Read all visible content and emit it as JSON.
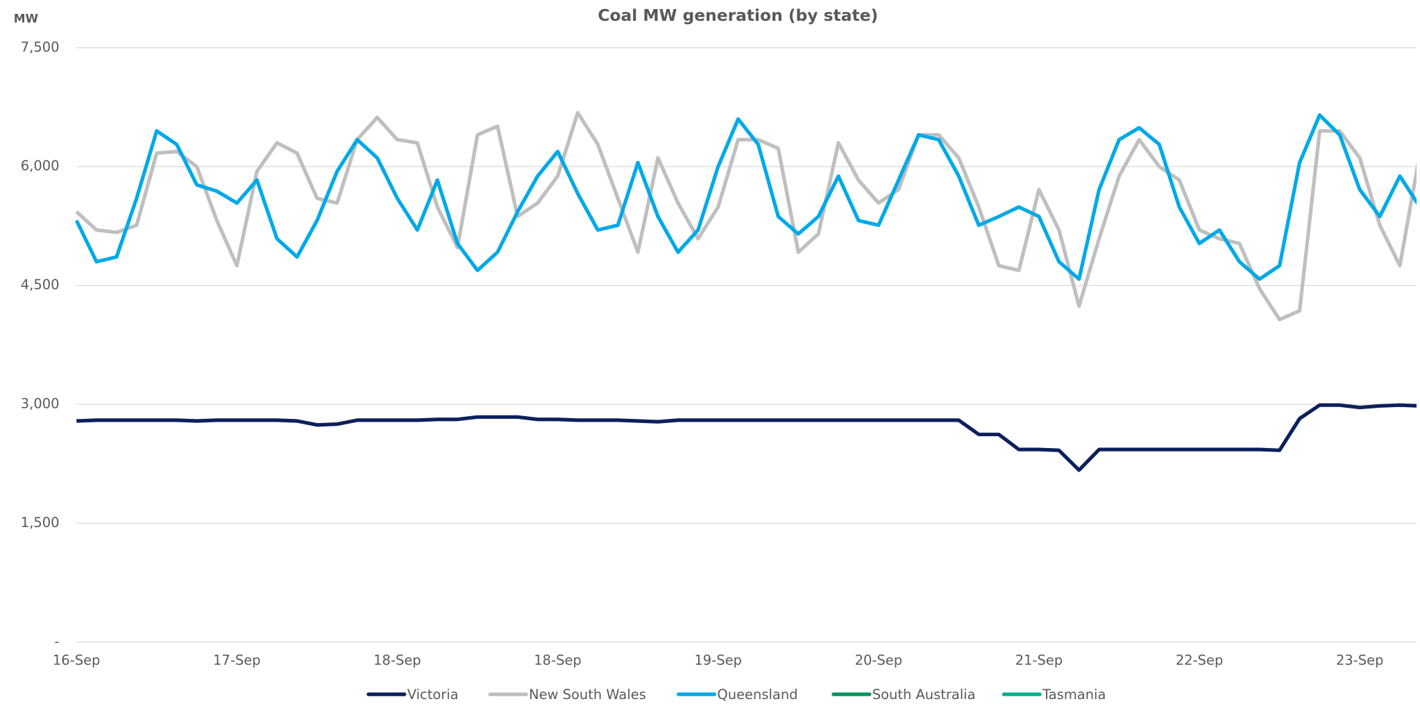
{
  "chart_data": {
    "type": "line",
    "title": "Coal MW generation (by state)",
    "y_label": "MW",
    "categories": [
      "16-Sep",
      null,
      null,
      null,
      null,
      null,
      null,
      null,
      "17-Sep",
      null,
      null,
      null,
      null,
      null,
      null,
      null,
      "18-Sep",
      null,
      null,
      null,
      null,
      null,
      null,
      null,
      "18-Sep",
      null,
      null,
      null,
      null,
      null,
      null,
      null,
      "19-Sep",
      null,
      null,
      null,
      null,
      null,
      null,
      null,
      "20-Sep",
      null,
      null,
      null,
      null,
      null,
      null,
      null,
      "21-Sep",
      null,
      null,
      null,
      null,
      null,
      null,
      null,
      "22-Sep",
      null,
      null,
      null,
      null,
      null,
      null,
      null,
      "23-Sep",
      null,
      null,
      null
    ],
    "ylim": [
      0,
      7500
    ],
    "yticks": [
      {
        "value": 0,
        "label": "-"
      },
      {
        "value": 1500,
        "label": "1,500"
      },
      {
        "value": 3000,
        "label": "3,000"
      },
      {
        "value": 4500,
        "label": "4,500"
      },
      {
        "value": 6000,
        "label": "6,000"
      },
      {
        "value": 7500,
        "label": "7,500"
      }
    ],
    "grid": true,
    "legend": "bottom",
    "series": [
      {
        "name": "Victoria",
        "color": "#0d1f5c",
        "values": [
          2790,
          2800,
          2800,
          2800,
          2800,
          2800,
          2790,
          2800,
          2800,
          2800,
          2800,
          2790,
          2740,
          2750,
          2800,
          2800,
          2800,
          2800,
          2810,
          2810,
          2840,
          2840,
          2840,
          2810,
          2810,
          2800,
          2800,
          2800,
          2790,
          2780,
          2800,
          2800,
          2800,
          2800,
          2800,
          2800,
          2800,
          2800,
          2800,
          2800,
          2800,
          2800,
          2800,
          2800,
          2800,
          2620,
          2620,
          2430,
          2430,
          2420,
          2170,
          2430,
          2430,
          2430,
          2430,
          2430,
          2430,
          2430,
          2430,
          2430,
          2420,
          2820,
          2990,
          2990,
          2960,
          2980,
          2990,
          2980
        ]
      },
      {
        "name": "New South Wales",
        "color": "#bfbfbf",
        "values": [
          5430,
          5200,
          5170,
          5260,
          6170,
          6190,
          6000,
          5320,
          4750,
          5940,
          6300,
          6170,
          5600,
          5540,
          6340,
          6620,
          6340,
          6300,
          5490,
          4980,
          6400,
          6510,
          5370,
          5540,
          5880,
          6680,
          6280,
          5600,
          4920,
          6110,
          5540,
          5090,
          5490,
          6340,
          6340,
          6230,
          4920,
          5150,
          6300,
          5830,
          5540,
          5710,
          6400,
          6400,
          6110,
          5490,
          4750,
          4690,
          5710,
          5200,
          4240,
          5090,
          5880,
          6340,
          6000,
          5830,
          5200,
          5090,
          5030,
          4460,
          4070,
          4180,
          6450,
          6450,
          6110,
          5260,
          4750,
          6170
        ]
      },
      {
        "name": "Queensland",
        "color": "#00a9e8",
        "values": [
          5320,
          4800,
          4860,
          5600,
          6450,
          6280,
          5770,
          5690,
          5540,
          5830,
          5090,
          4860,
          5320,
          5940,
          6340,
          6110,
          5600,
          5200,
          5830,
          5030,
          4690,
          4920,
          5430,
          5880,
          6190,
          5660,
          5200,
          5260,
          6050,
          5370,
          4920,
          5200,
          6000,
          6600,
          6280,
          5370,
          5150,
          5370,
          5880,
          5320,
          5260,
          5830,
          6400,
          6340,
          5880,
          5260,
          5370,
          5490,
          5370,
          4800,
          4580,
          5710,
          6340,
          6490,
          6280,
          5490,
          5030,
          5200,
          4800,
          4580,
          4750,
          6050,
          6650,
          6400,
          5710,
          5370,
          5880,
          5490
        ]
      },
      {
        "name": "South Australia",
        "color": "#00935d",
        "values": [
          null,
          null,
          null,
          null,
          null,
          null,
          null,
          null,
          null,
          null,
          null,
          null,
          null,
          null,
          null,
          null,
          null,
          null,
          null,
          null,
          null,
          null,
          null,
          null,
          null,
          null,
          null,
          null,
          null,
          null,
          null,
          null,
          null,
          null,
          null,
          null,
          null,
          null,
          null,
          null,
          null,
          null,
          null,
          null,
          null,
          null,
          null,
          null,
          null,
          null,
          null,
          null,
          null,
          null,
          null,
          null,
          null,
          null,
          null,
          null,
          null,
          null,
          null,
          null,
          null,
          null,
          null,
          null
        ]
      },
      {
        "name": "Tasmania",
        "color": "#00b28a",
        "values": [
          null,
          null,
          null,
          null,
          null,
          null,
          null,
          null,
          null,
          null,
          null,
          null,
          null,
          null,
          null,
          null,
          null,
          null,
          null,
          null,
          null,
          null,
          null,
          null,
          null,
          null,
          null,
          null,
          null,
          null,
          null,
          null,
          null,
          null,
          null,
          null,
          null,
          null,
          null,
          null,
          null,
          null,
          null,
          null,
          null,
          null,
          null,
          null,
          null,
          null,
          null,
          null,
          null,
          null,
          null,
          null,
          null,
          null,
          null,
          null,
          null,
          null,
          null,
          null,
          null,
          null,
          null,
          null
        ]
      }
    ]
  }
}
